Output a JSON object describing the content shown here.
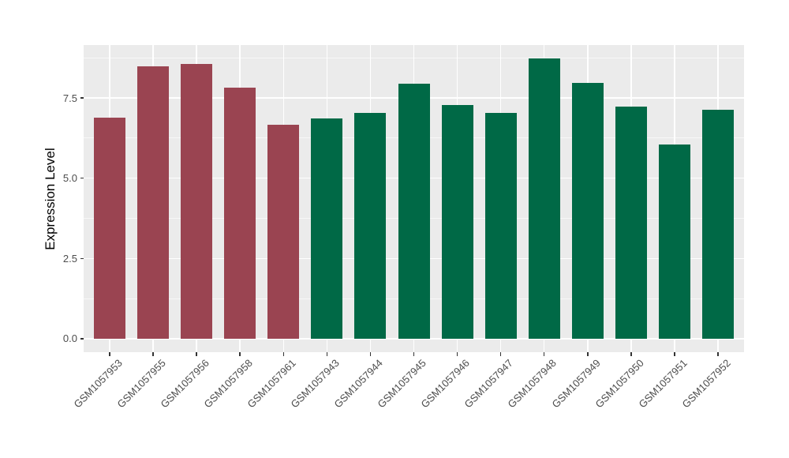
{
  "chart_data": {
    "type": "bar",
    "title": "",
    "xlabel": "",
    "ylabel": "Expression Level",
    "categories": [
      "GSM1057953",
      "GSM1057955",
      "GSM1057956",
      "GSM1057958",
      "GSM1057961",
      "GSM1057943",
      "GSM1057944",
      "GSM1057945",
      "GSM1057946",
      "GSM1057947",
      "GSM1057948",
      "GSM1057949",
      "GSM1057950",
      "GSM1057951",
      "GSM1057952"
    ],
    "values": [
      6.89,
      8.48,
      8.56,
      7.83,
      6.67,
      6.87,
      7.04,
      7.95,
      7.29,
      7.04,
      8.74,
      7.97,
      7.24,
      6.05,
      7.13
    ],
    "bar_groups": [
      "red",
      "red",
      "red",
      "red",
      "red",
      "green",
      "green",
      "green",
      "green",
      "green",
      "green",
      "green",
      "green",
      "green",
      "green"
    ],
    "group_colors": {
      "red": "#9A4451",
      "green": "#006946"
    },
    "ylim": [
      -0.42,
      9.15
    ],
    "yticks": [
      0.0,
      2.5,
      5.0,
      7.5
    ],
    "ytick_labels": [
      "0.0",
      "2.5",
      "5.0",
      "7.5"
    ],
    "yticks_minor": [
      1.25,
      3.75,
      6.25,
      8.75
    ],
    "grid": "major+minor",
    "legend": "none",
    "colors": {
      "figure_background": "#FFFFFF",
      "panel_background": "#EBEBEB",
      "grid_major": "#FFFFFF",
      "grid_minor": "#F7F7F7",
      "tick_mark": "#333333",
      "axis_text": "#4D4D4D",
      "axis_title": "#000000"
    }
  }
}
